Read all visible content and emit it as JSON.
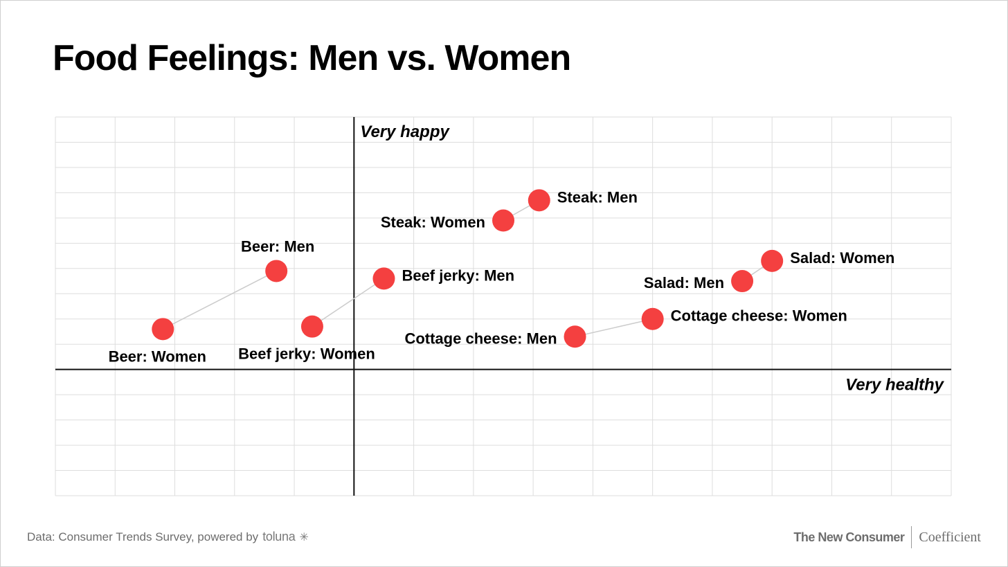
{
  "title": "Food Feelings: Men vs. Women",
  "footer": {
    "source_text": "Data: Consumer Trends Survey, powered by",
    "source_brand": "toluna",
    "source_brand_mark": "✳",
    "brand_left": "The New Consumer",
    "brand_right": "Coefficient"
  },
  "colors": {
    "point": "#f44040",
    "connector": "#cccccc",
    "grid": "#dddddd",
    "axis": "#111111"
  },
  "chart_data": {
    "type": "scatter",
    "title": "Food Feelings: Men vs. Women",
    "xlabel": "Very healthy",
    "ylabel": "Very happy",
    "xlim": [
      -5,
      10
    ],
    "ylim": [
      -5,
      10
    ],
    "grid": true,
    "series": [
      {
        "name": "Men",
        "points": [
          {
            "label": "Beer: Men",
            "x": -1.3,
            "y": 3.9
          },
          {
            "label": "Beef jerky: Men",
            "x": 0.5,
            "y": 3.6
          },
          {
            "label": "Steak: Men",
            "x": 3.1,
            "y": 6.7
          },
          {
            "label": "Salad: Men",
            "x": 6.5,
            "y": 3.5
          },
          {
            "label": "Cottage cheese: Men",
            "x": 3.7,
            "y": 1.3
          }
        ]
      },
      {
        "name": "Women",
        "points": [
          {
            "label": "Beer: Women",
            "x": -3.2,
            "y": 1.6
          },
          {
            "label": "Beef jerky: Women",
            "x": -0.7,
            "y": 1.7
          },
          {
            "label": "Steak: Women",
            "x": 2.5,
            "y": 5.9
          },
          {
            "label": "Salad: Women",
            "x": 7.0,
            "y": 4.3
          },
          {
            "label": "Cottage cheese: Women",
            "x": 5.0,
            "y": 2.0
          }
        ]
      }
    ],
    "pairs": [
      {
        "food": "Beer",
        "men": "Beer: Men",
        "women": "Beer: Women"
      },
      {
        "food": "Beef jerky",
        "men": "Beef jerky: Men",
        "women": "Beef jerky: Women"
      },
      {
        "food": "Steak",
        "men": "Steak: Men",
        "women": "Steak: Women"
      },
      {
        "food": "Salad",
        "men": "Salad: Men",
        "women": "Salad: Women"
      },
      {
        "food": "Cottage cheese",
        "men": "Cottage cheese: Men",
        "women": "Cottage cheese: Women"
      }
    ],
    "label_positions": {
      "Beer: Men": "above",
      "Beer: Women": "below",
      "Beef jerky: Men": "right",
      "Beef jerky: Women": "below",
      "Steak: Men": "right",
      "Steak: Women": "left",
      "Salad: Men": "left",
      "Salad: Women": "right",
      "Cottage cheese: Men": "left",
      "Cottage cheese: Women": "right"
    }
  }
}
